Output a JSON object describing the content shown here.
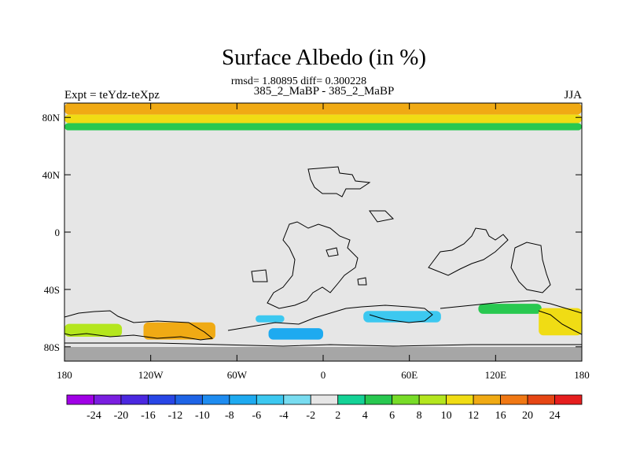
{
  "chart_data": {
    "type": "heatmap",
    "title": "Surface Albedo (in %)",
    "stats_line": "rmsd= 1.80895 diff= 0.300228",
    "subtitle": "385_2_MaBP - 385_2_MaBP",
    "left_label": "Expt = teYdz-teXpz",
    "right_label": "JJA",
    "x_ticks": [
      "180",
      "120W",
      "60W",
      "0",
      "60E",
      "120E",
      "180"
    ],
    "y_ticks": [
      "80N",
      "40N",
      "0",
      "40S",
      "80S"
    ],
    "xlim": [
      -180,
      180
    ],
    "ylim": [
      -90,
      90
    ],
    "colorbar": {
      "labels": [
        "-24",
        "-20",
        "-16",
        "-12",
        "-10",
        "-8",
        "-6",
        "-4",
        "-2",
        "2",
        "4",
        "6",
        "8",
        "10",
        "12",
        "16",
        "20",
        "24"
      ],
      "colors": [
        "#a000e6",
        "#7a1ee0",
        "#4b28e0",
        "#2846e6",
        "#1e64e6",
        "#1e8cf0",
        "#1eaaf0",
        "#3cc8f0",
        "#78dcf0",
        "#e6e6e6",
        "#14d296",
        "#28c850",
        "#78dc28",
        "#b4e61e",
        "#f0dc14",
        "#f0aa14",
        "#f07814",
        "#e64614",
        "#e61e1e"
      ]
    },
    "regions": [
      {
        "name": "arctic-band-top",
        "lon": [
          -180,
          180
        ],
        "lat": [
          82,
          90
        ],
        "value": 14
      },
      {
        "name": "arctic-band-mid",
        "lon": [
          -180,
          180
        ],
        "lat": [
          76,
          82
        ],
        "value": 10
      },
      {
        "name": "arctic-band-low",
        "lon": [
          -180,
          180
        ],
        "lat": [
          71,
          76
        ],
        "value": 4
      },
      {
        "name": "south-pacific-cluster",
        "lon": [
          -180,
          -140
        ],
        "lat": [
          -73,
          -64
        ],
        "value": 8
      },
      {
        "name": "south-america-tip",
        "lon": [
          -125,
          -75
        ],
        "lat": [
          -75,
          -63
        ],
        "value": 12
      },
      {
        "name": "south-atlantic-patch",
        "lon": [
          -47,
          -27
        ],
        "lat": [
          -63,
          -58
        ],
        "value": -6
      },
      {
        "name": "weddell-patch",
        "lon": [
          -38,
          0
        ],
        "lat": [
          -75,
          -67
        ],
        "value": -8
      },
      {
        "name": "indian-ocean-patch",
        "lon": [
          28,
          82
        ],
        "lat": [
          -63,
          -55
        ],
        "value": -6
      },
      {
        "name": "australia-south-band",
        "lon": [
          108,
          152
        ],
        "lat": [
          -57,
          -50
        ],
        "value": 4
      },
      {
        "name": "new-zealand-patch",
        "lon": [
          150,
          180
        ],
        "lat": [
          -72,
          -53
        ],
        "value": 10
      }
    ]
  }
}
